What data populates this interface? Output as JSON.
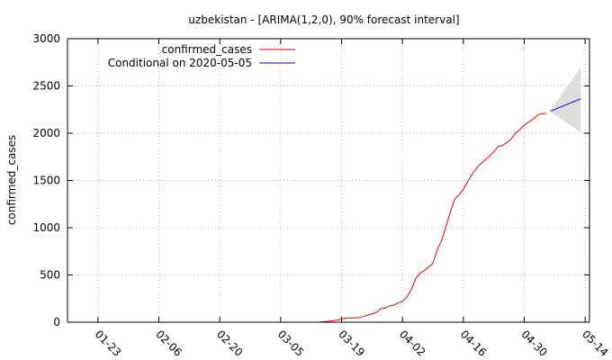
{
  "chart_data": {
    "type": "line",
    "title": "uzbekistan -  [ARIMA(1,2,0), 90% forecast interval]",
    "xlabel": "",
    "ylabel": "confirmed_cases",
    "ylim": [
      0,
      3000
    ],
    "xlim": [
      "2020-01-16",
      "2020-05-15"
    ],
    "yticks": [
      0,
      500,
      1000,
      1500,
      2000,
      2500,
      3000
    ],
    "xtick_labels": [
      "01-23",
      "02-06",
      "02-20",
      "03-05",
      "03-19",
      "04-02",
      "04-16",
      "04-30",
      "05-14"
    ],
    "xtick_dates": [
      "2020-01-23",
      "2020-02-06",
      "2020-02-20",
      "2020-03-05",
      "2020-03-19",
      "2020-04-02",
      "2020-04-16",
      "2020-04-30",
      "2020-05-14"
    ],
    "grid": true,
    "legend_position": "top-left",
    "series": [
      {
        "name": "confirmed_cases",
        "color": "#e00000",
        "x": [
          "2020-03-14",
          "2020-03-15",
          "2020-03-16",
          "2020-03-17",
          "2020-03-18",
          "2020-03-19",
          "2020-03-20",
          "2020-03-21",
          "2020-03-22",
          "2020-03-23",
          "2020-03-24",
          "2020-03-25",
          "2020-03-26",
          "2020-03-27",
          "2020-03-28",
          "2020-03-29",
          "2020-03-30",
          "2020-03-31",
          "2020-04-01",
          "2020-04-02",
          "2020-04-03",
          "2020-04-04",
          "2020-04-05",
          "2020-04-06",
          "2020-04-07",
          "2020-04-08",
          "2020-04-09",
          "2020-04-10",
          "2020-04-11",
          "2020-04-12",
          "2020-04-13",
          "2020-04-14",
          "2020-04-15",
          "2020-04-16",
          "2020-04-17",
          "2020-04-18",
          "2020-04-19",
          "2020-04-20",
          "2020-04-21",
          "2020-04-22",
          "2020-04-23",
          "2020-04-24",
          "2020-04-25",
          "2020-04-26",
          "2020-04-27",
          "2020-04-28",
          "2020-04-29",
          "2020-04-30",
          "2020-05-01",
          "2020-05-02",
          "2020-05-03",
          "2020-05-04",
          "2020-05-05"
        ],
        "y": [
          1,
          6,
          10,
          16,
          23,
          33,
          43,
          46,
          46,
          50,
          60,
          75,
          88,
          104,
          144,
          149,
          173,
          181,
          205,
          221,
          266,
          342,
          457,
          520,
          545,
          582,
          624,
          767,
          865,
          1014,
          1165,
          1302,
          1349,
          1405,
          1490,
          1565,
          1627,
          1678,
          1716,
          1758,
          1804,
          1862,
          1869,
          1904,
          1939,
          2002,
          2039,
          2086,
          2118,
          2149,
          2189,
          2207,
          2210
        ]
      },
      {
        "name": "Conditional on 2020-05-05",
        "color": "#0000e0",
        "x": [
          "2020-05-06",
          "2020-05-13"
        ],
        "y": [
          2233,
          2365
        ]
      }
    ],
    "forecast_interval": {
      "label": "90% forecast interval",
      "color": "#dddddd",
      "x": [
        "2020-05-06",
        "2020-05-13"
      ],
      "lower": [
        2228,
        2010
      ],
      "upper": [
        2238,
        2700
      ]
    }
  }
}
